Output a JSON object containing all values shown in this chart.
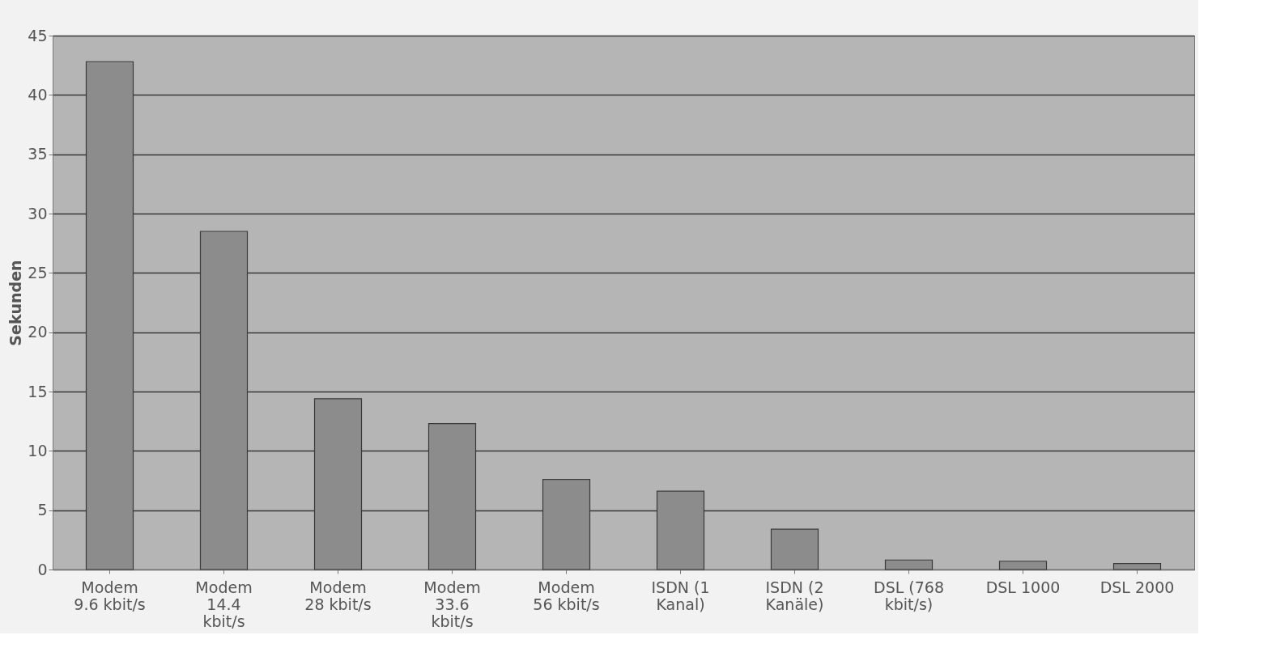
{
  "chart_data": {
    "type": "bar",
    "ylabel": "Sekunden",
    "categories": [
      "Modem\n9.6 kbit/s",
      "Modem\n14.4\nkbit/s",
      "Modem\n28 kbit/s",
      "Modem\n33.6\nkbit/s",
      "Modem\n56 kbit/s",
      "ISDN (1\nKanal)",
      "ISDN (2\nKanäle)",
      "DSL (768\nkbit/s)",
      "DSL 1000",
      "DSL 2000"
    ],
    "values": [
      42.8,
      28.5,
      14.4,
      12.3,
      7.6,
      6.6,
      3.4,
      0.8,
      0.7,
      0.5
    ],
    "color": "#8c8c8c",
    "ylim": [
      0,
      45
    ],
    "yticks": [
      0,
      5,
      10,
      15,
      20,
      25,
      30,
      35,
      40,
      45
    ],
    "grid": "y"
  }
}
